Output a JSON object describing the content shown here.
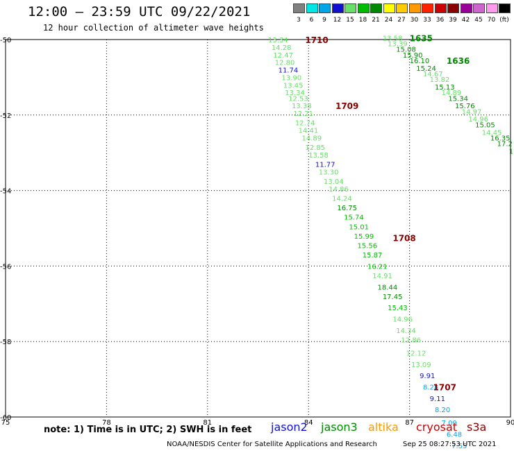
{
  "header": {
    "title": "12:00 – 23:59 UTC 09/22/2021",
    "subtitle": "12 hour collection of altimeter wave heights"
  },
  "legend": {
    "swatches": [
      {
        "label": "3",
        "color": "#808080"
      },
      {
        "label": "6",
        "color": "#00e5e5"
      },
      {
        "label": "9",
        "color": "#00a6e8"
      },
      {
        "label": "12",
        "color": "#1010d0"
      },
      {
        "label": "15",
        "color": "#66e066"
      },
      {
        "label": "18",
        "color": "#00bb00"
      },
      {
        "label": "21",
        "color": "#008800"
      },
      {
        "label": "24",
        "color": "#ffff00"
      },
      {
        "label": "27",
        "color": "#ffcc00"
      },
      {
        "label": "30",
        "color": "#ff9900"
      },
      {
        "label": "33",
        "color": "#ff2200"
      },
      {
        "label": "36",
        "color": "#cc0000"
      },
      {
        "label": "39",
        "color": "#880000"
      },
      {
        "label": "42",
        "color": "#990099"
      },
      {
        "label": "45",
        "color": "#cc66cc"
      },
      {
        "label": "70",
        "color": "#ff99ee"
      },
      {
        "label": "(ft)",
        "color": "#000000"
      }
    ]
  },
  "map": {
    "lon_ticks": [
      "75",
      "78",
      "81",
      "84",
      "87",
      "90"
    ],
    "lat_ticks": [
      "-50",
      "-52",
      "-54",
      "-56",
      "-58",
      "-60"
    ],
    "time_labels": [
      {
        "text": "1710",
        "lon": 83.9,
        "lat": -50.0,
        "color": "#880000"
      },
      {
        "text": "1709",
        "lon": 84.8,
        "lat": -51.75,
        "color": "#880000"
      },
      {
        "text": "1708",
        "lon": 86.5,
        "lat": -55.25,
        "color": "#880000"
      },
      {
        "text": "1707",
        "lon": 87.7,
        "lat": -59.2,
        "color": "#880000"
      },
      {
        "text": "1635",
        "lon": 87.0,
        "lat": -49.95,
        "color": "#008800"
      },
      {
        "text": "1636",
        "lon": 88.1,
        "lat": -50.55,
        "color": "#008800"
      }
    ],
    "track_a": [
      {
        "text": "13.34",
        "lon": 82.8,
        "lat": -50.0,
        "color": "#66e066"
      },
      {
        "text": "14.28",
        "lon": 82.9,
        "lat": -50.2,
        "color": "#66e066"
      },
      {
        "text": "12.47",
        "lon": 82.95,
        "lat": -50.4,
        "color": "#66e066"
      },
      {
        "text": "12.80",
        "lon": 83.0,
        "lat": -50.6,
        "color": "#66e066"
      },
      {
        "text": "11.74",
        "lon": 83.1,
        "lat": -50.8,
        "color": "#1010d0"
      },
      {
        "text": "13.90",
        "lon": 83.2,
        "lat": -51.0,
        "color": "#66e066"
      },
      {
        "text": "13.45",
        "lon": 83.25,
        "lat": -51.2,
        "color": "#66e066"
      },
      {
        "text": "13.34",
        "lon": 83.3,
        "lat": -51.4,
        "color": "#66e066"
      },
      {
        "text": "12.53",
        "lon": 83.4,
        "lat": -51.55,
        "color": "#66e066"
      },
      {
        "text": "13.38",
        "lon": 83.5,
        "lat": -51.75,
        "color": "#66e066"
      },
      {
        "text": "12.21",
        "lon": 83.55,
        "lat": -51.95,
        "color": "#66e066"
      },
      {
        "text": "12.74",
        "lon": 83.6,
        "lat": -52.2,
        "color": "#66e066"
      },
      {
        "text": "14.41",
        "lon": 83.7,
        "lat": -52.4,
        "color": "#66e066"
      },
      {
        "text": "14.89",
        "lon": 83.8,
        "lat": -52.6,
        "color": "#66e066"
      },
      {
        "text": "12.85",
        "lon": 83.9,
        "lat": -52.85,
        "color": "#66e066"
      },
      {
        "text": "13.58",
        "lon": 84.0,
        "lat": -53.05,
        "color": "#66e066"
      },
      {
        "text": "11.77",
        "lon": 84.2,
        "lat": -53.3,
        "color": "#1010d0"
      },
      {
        "text": "13.30",
        "lon": 84.3,
        "lat": -53.5,
        "color": "#66e066"
      },
      {
        "text": "13.04",
        "lon": 84.45,
        "lat": -53.75,
        "color": "#66e066"
      },
      {
        "text": "14.86",
        "lon": 84.6,
        "lat": -53.95,
        "color": "#66e066"
      },
      {
        "text": "14.24",
        "lon": 84.7,
        "lat": -54.2,
        "color": "#66e066"
      },
      {
        "text": "16.75",
        "lon": 84.85,
        "lat": -54.45,
        "color": "#008800"
      },
      {
        "text": "15.74",
        "lon": 85.05,
        "lat": -54.7,
        "color": "#00bb00"
      },
      {
        "text": "15.01",
        "lon": 85.2,
        "lat": -54.95,
        "color": "#00bb00"
      },
      {
        "text": "15.99",
        "lon": 85.35,
        "lat": -55.2,
        "color": "#00bb00"
      },
      {
        "text": "15.56",
        "lon": 85.45,
        "lat": -55.45,
        "color": "#00bb00"
      },
      {
        "text": "15.87",
        "lon": 85.6,
        "lat": -55.7,
        "color": "#00bb00"
      },
      {
        "text": "16.21",
        "lon": 85.75,
        "lat": -56.0,
        "color": "#00bb00"
      },
      {
        "text": "14.91",
        "lon": 85.9,
        "lat": -56.25,
        "color": "#66e066"
      },
      {
        "text": "18.44",
        "lon": 86.05,
        "lat": -56.55,
        "color": "#008800"
      },
      {
        "text": "17.45",
        "lon": 86.2,
        "lat": -56.8,
        "color": "#008800"
      },
      {
        "text": "15.43",
        "lon": 86.35,
        "lat": -57.1,
        "color": "#00bb00"
      },
      {
        "text": "14.96",
        "lon": 86.5,
        "lat": -57.4,
        "color": "#66e066"
      },
      {
        "text": "14.34",
        "lon": 86.6,
        "lat": -57.7,
        "color": "#66e066"
      },
      {
        "text": "12.86",
        "lon": 86.75,
        "lat": -57.95,
        "color": "#66e066"
      },
      {
        "text": "12.12",
        "lon": 86.9,
        "lat": -58.3,
        "color": "#66e066"
      },
      {
        "text": "13.09",
        "lon": 87.05,
        "lat": -58.6,
        "color": "#66e066"
      },
      {
        "text": "9.91",
        "lon": 87.3,
        "lat": -58.9,
        "color": "#1010d0"
      },
      {
        "text": "8.28",
        "lon": 87.4,
        "lat": -59.2,
        "color": "#00a6e8"
      },
      {
        "text": "9.11",
        "lon": 87.6,
        "lat": -59.5,
        "color": "#1010d0"
      },
      {
        "text": "8.20",
        "lon": 87.75,
        "lat": -59.8,
        "color": "#00a6e8"
      },
      {
        "text": "7.09",
        "lon": 87.95,
        "lat": -60.15,
        "color": "#00a6e8"
      },
      {
        "text": "6.48",
        "lon": 88.1,
        "lat": -60.45,
        "color": "#00a6e8"
      },
      {
        "text": "7.55",
        "lon": 88.25,
        "lat": -60.75,
        "color": "#00a6e8"
      }
    ],
    "track_b": [
      {
        "text": "13.58",
        "lon": 86.2,
        "lat": -49.95,
        "color": "#66e066"
      },
      {
        "text": "13.39",
        "lon": 86.35,
        "lat": -50.1,
        "color": "#66e066"
      },
      {
        "text": "15.08",
        "lon": 86.6,
        "lat": -50.25,
        "color": "#008800"
      },
      {
        "text": "15.90",
        "lon": 86.8,
        "lat": -50.4,
        "color": "#008800"
      },
      {
        "text": "16.10",
        "lon": 87.0,
        "lat": -50.55,
        "color": "#008800"
      },
      {
        "text": "15.24",
        "lon": 87.2,
        "lat": -50.75,
        "color": "#008800"
      },
      {
        "text": "14.67",
        "lon": 87.4,
        "lat": -50.9,
        "color": "#66e066"
      },
      {
        "text": "13.82",
        "lon": 87.6,
        "lat": -51.05,
        "color": "#66e066"
      },
      {
        "text": "15.13",
        "lon": 87.75,
        "lat": -51.25,
        "color": "#008800"
      },
      {
        "text": "14.89",
        "lon": 87.95,
        "lat": -51.4,
        "color": "#66e066"
      },
      {
        "text": "15.34",
        "lon": 88.15,
        "lat": -51.55,
        "color": "#008800"
      },
      {
        "text": "15.76",
        "lon": 88.35,
        "lat": -51.75,
        "color": "#008800"
      },
      {
        "text": "14.97",
        "lon": 88.55,
        "lat": -51.9,
        "color": "#66e066"
      },
      {
        "text": "14.96",
        "lon": 88.75,
        "lat": -52.1,
        "color": "#66e066"
      },
      {
        "text": "15.05",
        "lon": 88.95,
        "lat": -52.25,
        "color": "#008800"
      },
      {
        "text": "14.45",
        "lon": 89.15,
        "lat": -52.45,
        "color": "#66e066"
      },
      {
        "text": "16.35",
        "lon": 89.4,
        "lat": -52.6,
        "color": "#008800"
      },
      {
        "text": "17.2",
        "lon": 89.6,
        "lat": -52.75,
        "color": "#008800"
      },
      {
        "text": "1",
        "lon": 89.95,
        "lat": -52.95,
        "color": "#008800"
      }
    ]
  },
  "footer": {
    "note": "note: 1) Time is in UTC; 2) SWH is in feet",
    "satellites": [
      {
        "name": "jason2",
        "color": "#1010d0"
      },
      {
        "name": "jason3",
        "color": "#008800"
      },
      {
        "name": "altika",
        "color": "#ff9900"
      },
      {
        "name": "cryosat",
        "color": "#cc0000"
      },
      {
        "name": "s3a",
        "color": "#880000"
      }
    ],
    "credit": "NOAA/NESDIS Center for Satellite Applications and Research",
    "timestamp": "Sep 25 08:27:53 UTC 2021"
  }
}
